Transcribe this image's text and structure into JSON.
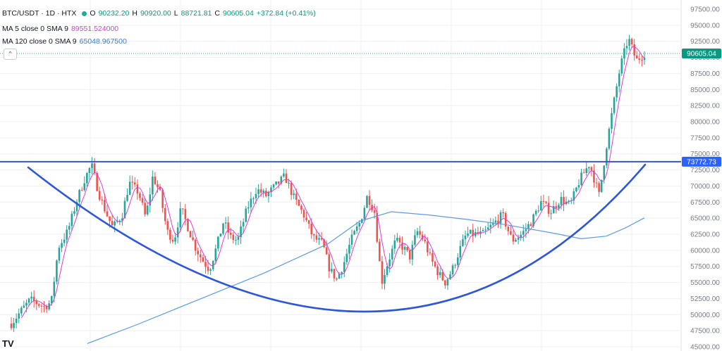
{
  "header": {
    "symbol": "BTC/USDT · 1D · HTX",
    "open_label": "O",
    "open": "90232.20",
    "high_label": "H",
    "high": "90920.00",
    "low_label": "L",
    "low": "88721.81",
    "close_label": "C",
    "close": "90605.04",
    "change": "+372.84 (+0.41%)"
  },
  "indicators": [
    {
      "name": "MA 5 close 0 SMA 9",
      "value": "89551.524000",
      "color": "#e03bd6"
    },
    {
      "name": "MA 120 close 0 SMA 9",
      "value": "65048.967500",
      "color": "#2f7ae5"
    }
  ],
  "collapse_glyph": "^",
  "logo_text": "TV",
  "colors": {
    "up": "#26a69a",
    "down": "#ef5350",
    "ma5": "#e03bd6",
    "ma120": "#5b9be8",
    "annotation": "#2f58d8",
    "price_tag": "#089981",
    "level_tag": "#2962ff",
    "grid": "#eef0f3",
    "axis_text": "#787b86"
  },
  "chart_data": {
    "type": "candlestick",
    "title": "",
    "y_axis_position": "right",
    "ylim": [
      45000,
      97500
    ],
    "y_ticks": [
      "97500.00",
      "95000.00",
      "92500.00",
      "90000.00",
      "87500.00",
      "85000.00",
      "82500.00",
      "80000.00",
      "77500.00",
      "75000.00",
      "72500.00",
      "70000.00",
      "67500.00",
      "65000.00",
      "62500.00",
      "60000.00",
      "57500.00",
      "55000.00",
      "52500.00",
      "50000.00",
      "47500.00",
      "45000.00"
    ],
    "grid": true,
    "last_price": {
      "value": 90605.04,
      "label": "90605.04"
    },
    "horizontal_level": {
      "value": 73772.73,
      "label": "73772.73"
    },
    "anchors": [
      {
        "t": 0,
        "p": 48600
      },
      {
        "t": 0.02,
        "p": 50500
      },
      {
        "t": 0.04,
        "p": 52300
      },
      {
        "t": 0.07,
        "p": 51200
      },
      {
        "t": 0.085,
        "p": 52000
      },
      {
        "t": 0.1,
        "p": 60500
      },
      {
        "t": 0.12,
        "p": 63000
      },
      {
        "t": 0.14,
        "p": 68000
      },
      {
        "t": 0.155,
        "p": 71000
      },
      {
        "t": 0.17,
        "p": 73300
      },
      {
        "t": 0.185,
        "p": 69000
      },
      {
        "t": 0.2,
        "p": 66000
      },
      {
        "t": 0.215,
        "p": 63500
      },
      {
        "t": 0.235,
        "p": 65500
      },
      {
        "t": 0.25,
        "p": 70500
      },
      {
        "t": 0.27,
        "p": 69000
      },
      {
        "t": 0.285,
        "p": 65000
      },
      {
        "t": 0.3,
        "p": 71500
      },
      {
        "t": 0.315,
        "p": 69000
      },
      {
        "t": 0.33,
        "p": 63000
      },
      {
        "t": 0.345,
        "p": 61500
      },
      {
        "t": 0.36,
        "p": 66500
      },
      {
        "t": 0.375,
        "p": 63500
      },
      {
        "t": 0.39,
        "p": 60500
      },
      {
        "t": 0.405,
        "p": 58500
      },
      {
        "t": 0.42,
        "p": 57000
      },
      {
        "t": 0.435,
        "p": 60500
      },
      {
        "t": 0.45,
        "p": 64500
      },
      {
        "t": 0.465,
        "p": 62000
      },
      {
        "t": 0.48,
        "p": 61500
      },
      {
        "t": 0.5,
        "p": 66500
      },
      {
        "t": 0.52,
        "p": 69500
      },
      {
        "t": 0.54,
        "p": 68500
      },
      {
        "t": 0.56,
        "p": 70000
      },
      {
        "t": 0.58,
        "p": 71500
      },
      {
        "t": 0.6,
        "p": 68000
      },
      {
        "t": 0.62,
        "p": 65500
      },
      {
        "t": 0.64,
        "p": 62000
      },
      {
        "t": 0.66,
        "p": 61000
      },
      {
        "t": 0.675,
        "p": 57000
      },
      {
        "t": 0.69,
        "p": 55500
      },
      {
        "t": 0.705,
        "p": 58000
      },
      {
        "t": 0.72,
        "p": 61500
      },
      {
        "t": 0.74,
        "p": 64500
      },
      {
        "t": 0.755,
        "p": 68500
      },
      {
        "t": 0.77,
        "p": 66000
      },
      {
        "t": 0.785,
        "p": 55000
      },
      {
        "t": 0.8,
        "p": 58500
      },
      {
        "t": 0.815,
        "p": 61500
      },
      {
        "t": 0.83,
        "p": 60500
      },
      {
        "t": 0.845,
        "p": 59000
      },
      {
        "t": 0.86,
        "p": 63000
      },
      {
        "t": 0.875,
        "p": 61500
      },
      {
        "t": 0.89,
        "p": 58500
      },
      {
        "t": 0.905,
        "p": 56500
      },
      {
        "t": 0.92,
        "p": 55000
      },
      {
        "t": 0.935,
        "p": 57000
      },
      {
        "t": 0.95,
        "p": 60000
      },
      {
        "t": 0.965,
        "p": 62500
      }
    ],
    "anchors2": [
      {
        "t": 0,
        "p": 62500
      },
      {
        "t": 0.06,
        "p": 64000
      },
      {
        "t": 0.12,
        "p": 65500
      },
      {
        "t": 0.18,
        "p": 61500
      },
      {
        "t": 0.24,
        "p": 62500
      },
      {
        "t": 0.3,
        "p": 64500
      },
      {
        "t": 0.36,
        "p": 67500
      },
      {
        "t": 0.42,
        "p": 66000
      },
      {
        "t": 0.48,
        "p": 68000
      },
      {
        "t": 0.54,
        "p": 67000
      },
      {
        "t": 0.6,
        "p": 71000
      },
      {
        "t": 0.66,
        "p": 73500
      },
      {
        "t": 0.72,
        "p": 68500
      },
      {
        "t": 0.76,
        "p": 75500
      },
      {
        "t": 0.8,
        "p": 81500
      },
      {
        "t": 0.85,
        "p": 88500
      },
      {
        "t": 0.9,
        "p": 93000
      },
      {
        "t": 0.95,
        "p": 89500
      },
      {
        "t": 1.0,
        "p": 90605
      }
    ],
    "split": 0.745,
    "num_candles": 252,
    "ma120_points": [
      {
        "t": 0.12,
        "p": 45500
      },
      {
        "t": 0.2,
        "p": 48500
      },
      {
        "t": 0.3,
        "p": 52500
      },
      {
        "t": 0.4,
        "p": 56500
      },
      {
        "t": 0.5,
        "p": 61000
      },
      {
        "t": 0.55,
        "p": 64500
      },
      {
        "t": 0.6,
        "p": 66000
      },
      {
        "t": 0.66,
        "p": 65500
      },
      {
        "t": 0.72,
        "p": 64800
      },
      {
        "t": 0.78,
        "p": 64000
      },
      {
        "t": 0.86,
        "p": 62600
      },
      {
        "t": 0.9,
        "p": 61800
      },
      {
        "t": 0.94,
        "p": 62200
      },
      {
        "t": 0.97,
        "p": 63500
      },
      {
        "t": 1.0,
        "p": 65049
      }
    ]
  }
}
